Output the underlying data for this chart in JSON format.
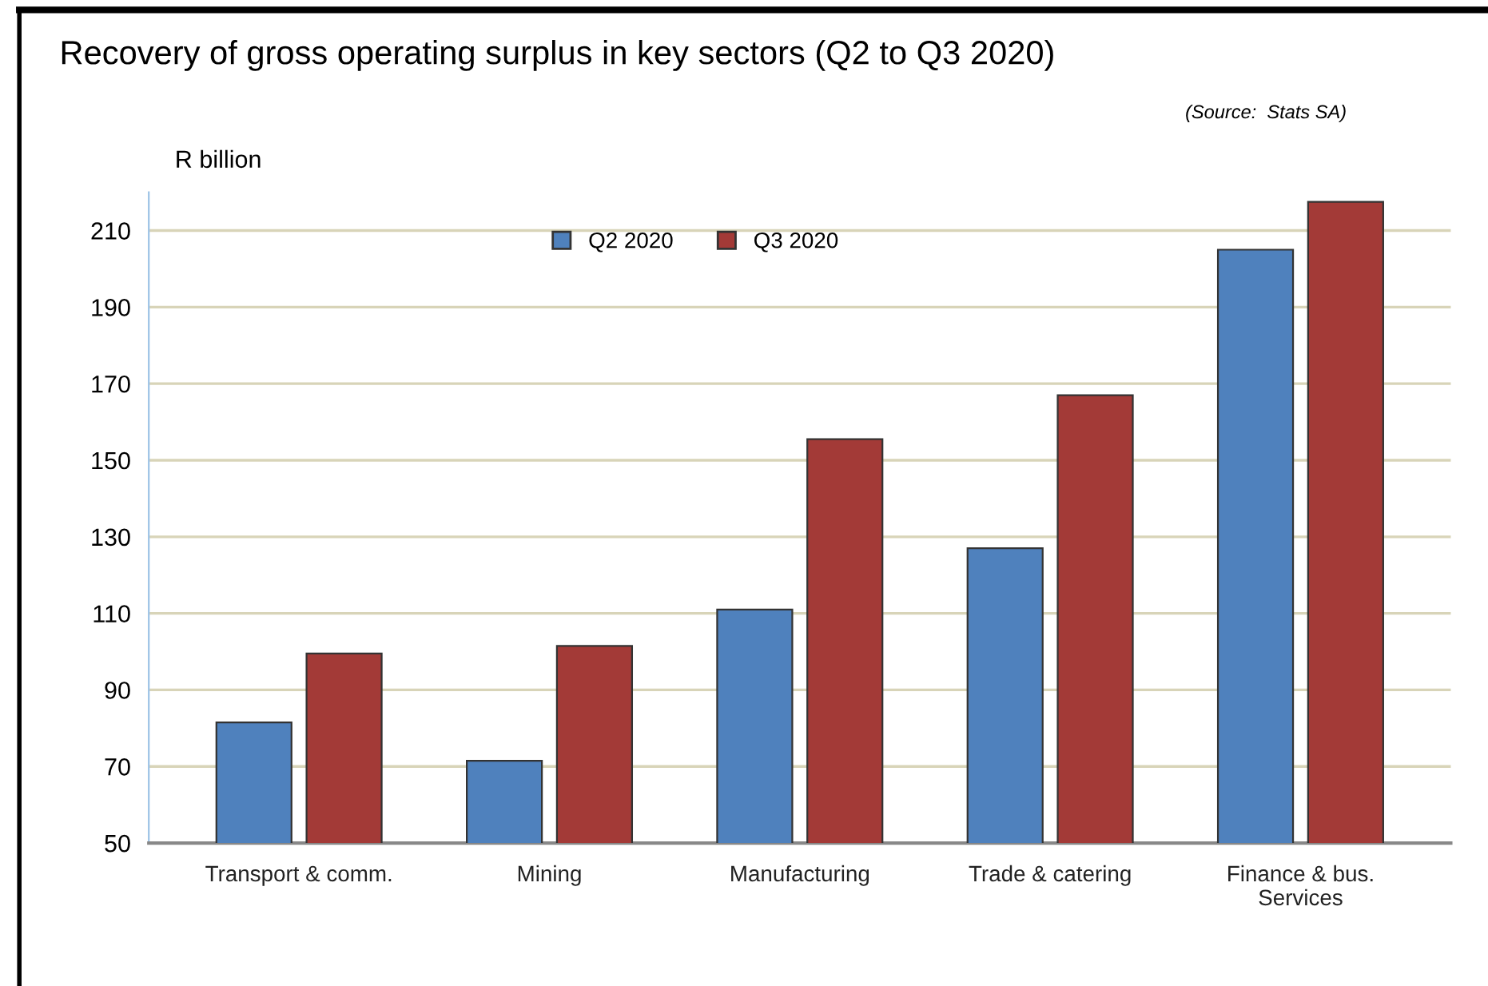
{
  "chart_data": {
    "type": "bar",
    "title": "Recovery of gross operating surplus in key sectors (Q2 to Q3 2020)",
    "annotations": [
      "(Source:  Stats SA)"
    ],
    "ylabel": "R billion",
    "categories": [
      "Transport & comm.",
      "Mining",
      "Manufacturing",
      "Trade & catering",
      "Finance & bus.\nServices"
    ],
    "series": [
      {
        "name": "Q2 2020",
        "color": "#4f81bd",
        "values": [
          81.5,
          71.5,
          111,
          127,
          205
        ]
      },
      {
        "name": "Q3 2020",
        "color": "#a33a37",
        "values": [
          99.5,
          101.5,
          155.5,
          167,
          217.5
        ]
      }
    ],
    "ylim": [
      50,
      220
    ],
    "yticks": [
      50,
      70,
      90,
      110,
      130,
      150,
      170,
      190,
      210
    ],
    "grid": "y",
    "legend": "top"
  }
}
